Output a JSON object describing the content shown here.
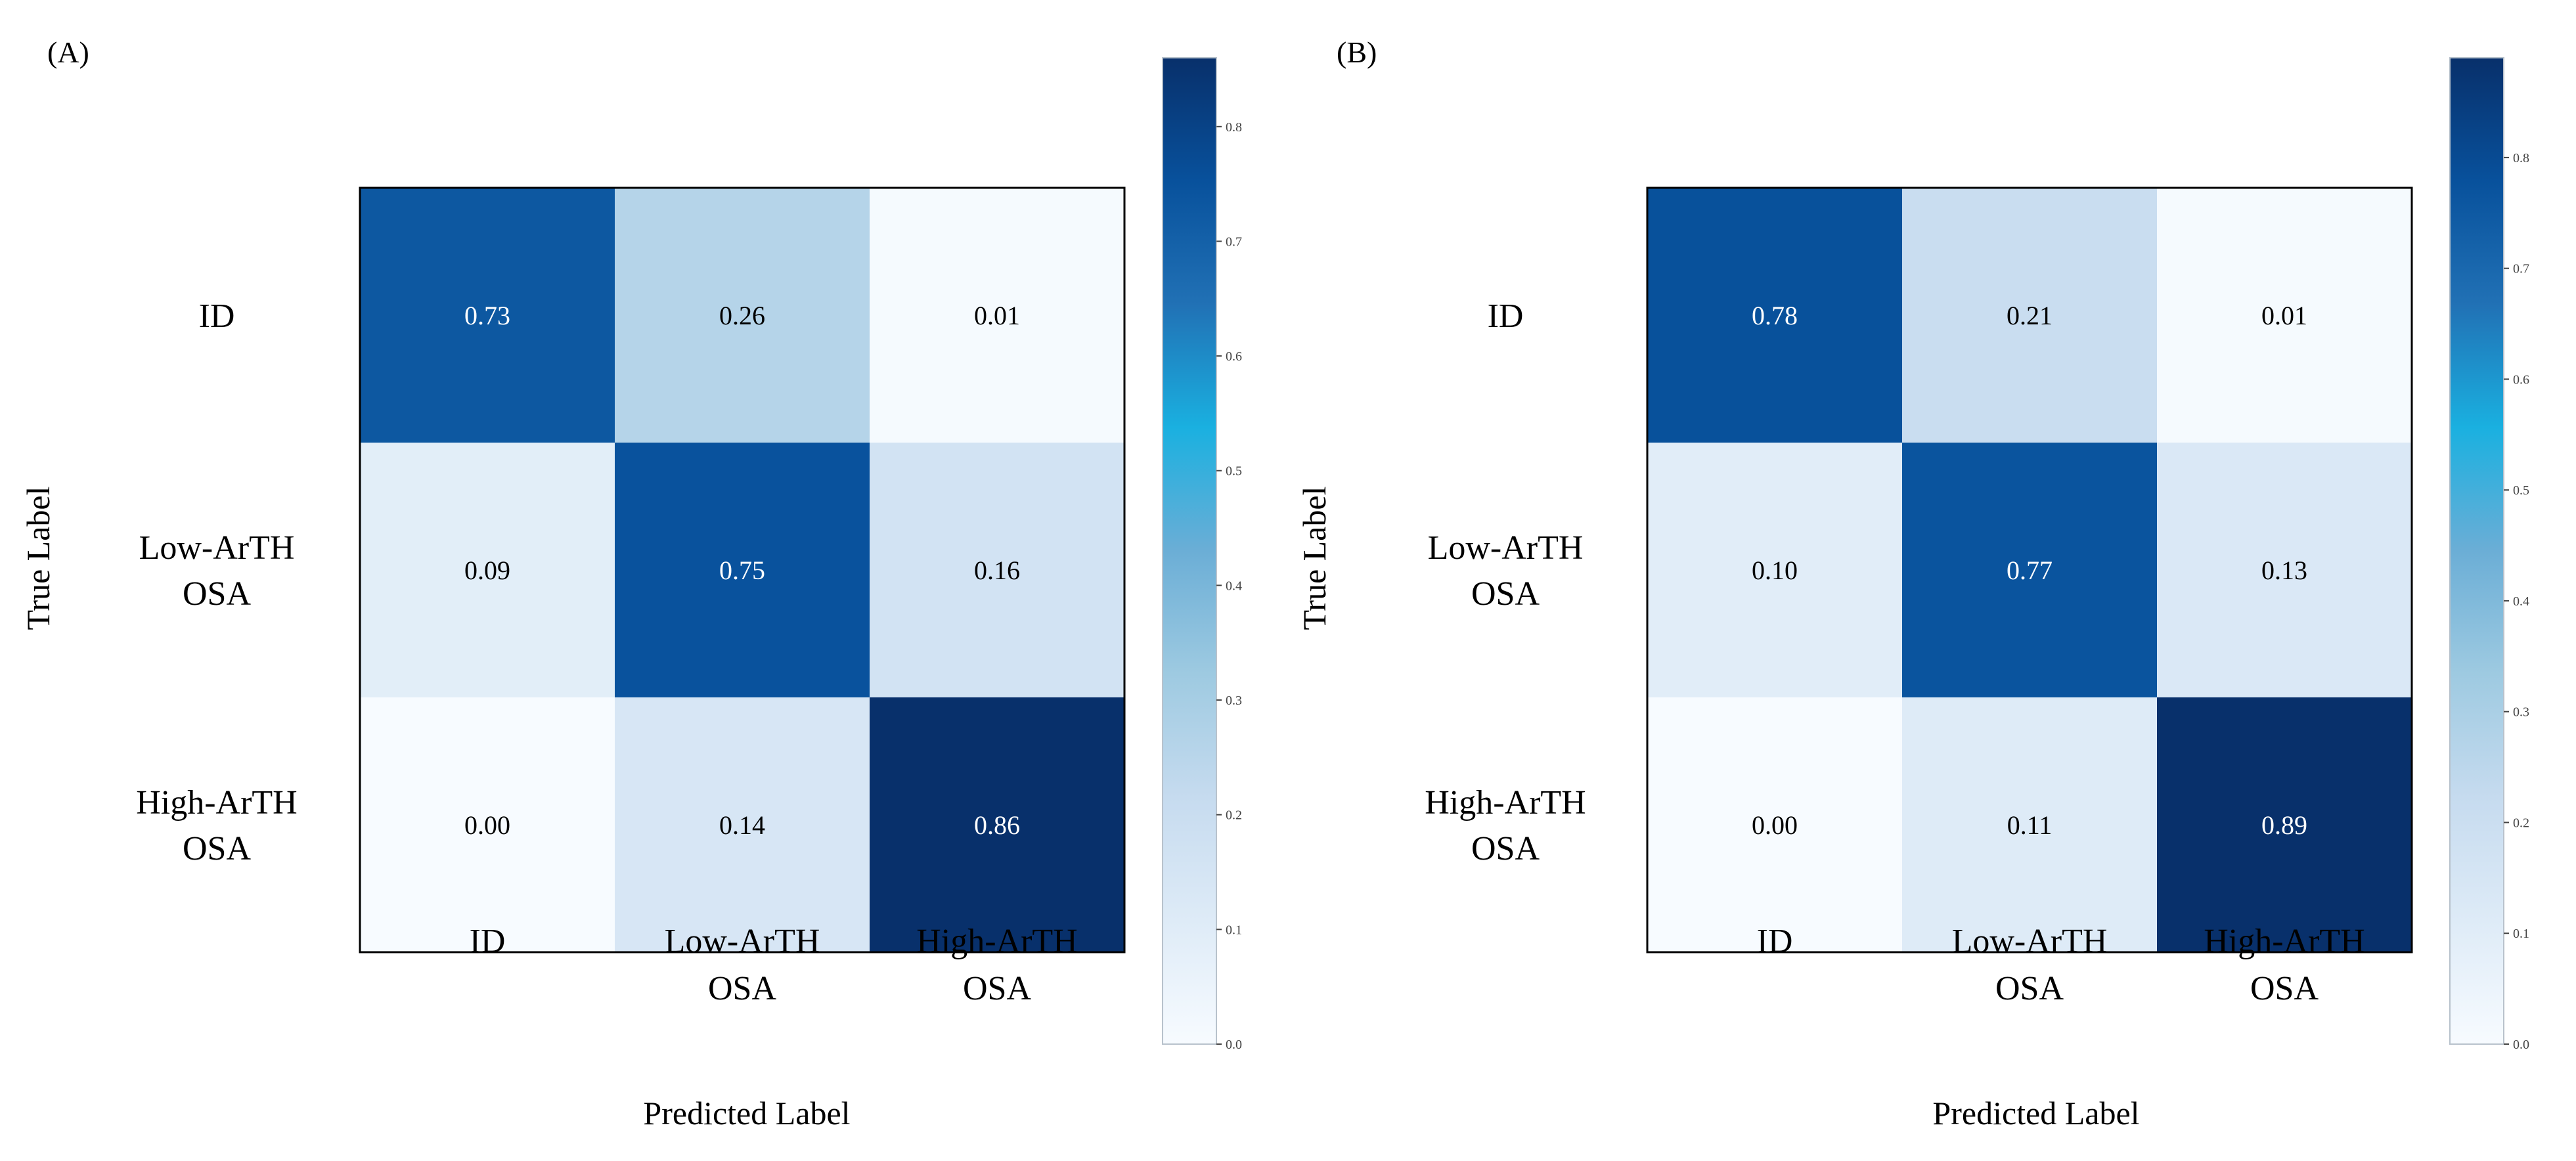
{
  "chart_data": [
    {
      "panel_label": "(A)",
      "type": "heatmap",
      "title": "",
      "xlabel": "Predicted Label",
      "ylabel": "True Label",
      "x_categories": [
        [
          "ID"
        ],
        [
          "Low-ArTH",
          "OSA"
        ],
        [
          "High-ArTH",
          "OSA"
        ]
      ],
      "y_categories": [
        [
          "ID"
        ],
        [
          "Low-ArTH",
          "OSA"
        ],
        [
          "High-ArTH",
          "OSA"
        ]
      ],
      "values": [
        [
          0.73,
          0.26,
          0.01
        ],
        [
          0.09,
          0.75,
          0.16
        ],
        [
          0.0,
          0.14,
          0.86
        ]
      ],
      "value_labels": [
        [
          "0.73",
          "0.26",
          "0.01"
        ],
        [
          "0.09",
          "0.75",
          "0.16"
        ],
        [
          "0.00",
          "0.14",
          "0.86"
        ]
      ],
      "colorbar": {
        "min": 0.0,
        "max": 0.86,
        "ticks": [
          0.0,
          0.1,
          0.2,
          0.3,
          0.4,
          0.5,
          0.6,
          0.7,
          0.8
        ],
        "tick_labels": [
          "0.0",
          "0.1",
          "0.2",
          "0.3",
          "0.4",
          "0.5",
          "0.6",
          "0.7",
          "0.8"
        ],
        "colormap": "Blues"
      }
    },
    {
      "panel_label": "(B)",
      "type": "heatmap",
      "title": "",
      "xlabel": "Predicted Label",
      "ylabel": "True Label",
      "x_categories": [
        [
          "ID"
        ],
        [
          "Low-ArTH",
          "OSA"
        ],
        [
          "High-ArTH",
          "OSA"
        ]
      ],
      "y_categories": [
        [
          "ID"
        ],
        [
          "Low-ArTH",
          "OSA"
        ],
        [
          "High-ArTH",
          "OSA"
        ]
      ],
      "values": [
        [
          0.78,
          0.21,
          0.01
        ],
        [
          0.1,
          0.77,
          0.13
        ],
        [
          0.0,
          0.11,
          0.89
        ]
      ],
      "value_labels": [
        [
          "0.78",
          "0.21",
          "0.01"
        ],
        [
          "0.10",
          "0.77",
          "0.13"
        ],
        [
          "0.00",
          "0.11",
          "0.89"
        ]
      ],
      "colorbar": {
        "min": 0.0,
        "max": 0.89,
        "ticks": [
          0.0,
          0.1,
          0.2,
          0.3,
          0.4,
          0.5,
          0.6,
          0.7,
          0.8
        ],
        "tick_labels": [
          "0.0",
          "0.1",
          "0.2",
          "0.3",
          "0.4",
          "0.5",
          "0.6",
          "0.7",
          "0.8"
        ],
        "colormap": "Blues"
      }
    }
  ],
  "colors": {
    "cmap_stops": [
      "#f7fbff",
      "#deebf7",
      "#c6dbef",
      "#9ecae1",
      "#6baed6",
      "#1ab0e0",
      "#2171b5",
      "#08519c",
      "#08306b"
    ],
    "axis": "#000000",
    "text_dark": "#000000",
    "text_light": "#ffffff",
    "colorbar_frame": "#b8c2cc",
    "colorbar_tick_text": "#444444"
  }
}
